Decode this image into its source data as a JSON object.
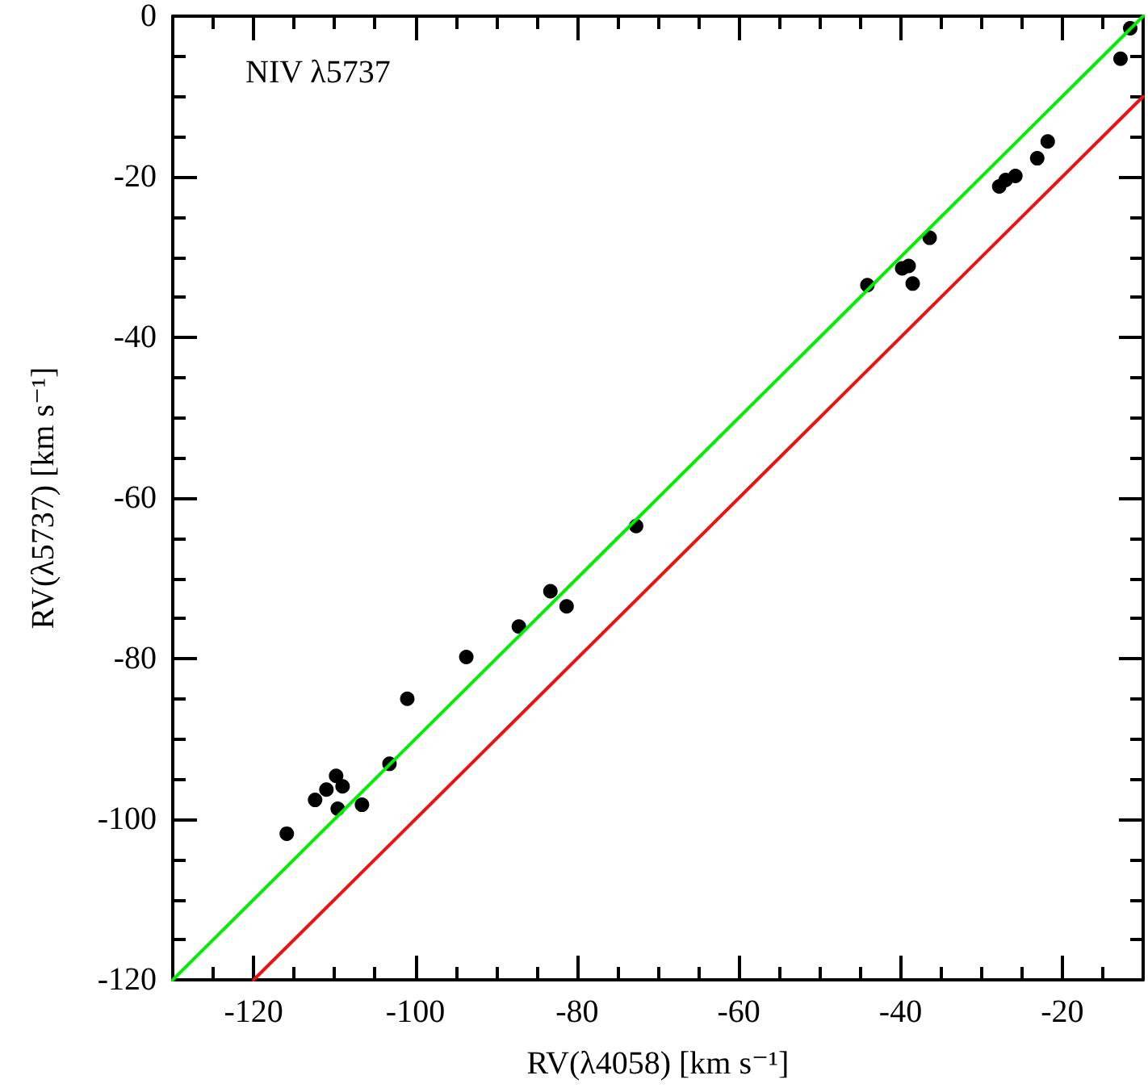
{
  "chart_data": {
    "type": "scatter",
    "xlabel": "RV(λ4058) [km s⁻¹]",
    "ylabel": "RV(λ5737) [km s⁻¹]",
    "annotations": [
      "NIV λ5737"
    ],
    "xlim": [
      -130,
      -10
    ],
    "ylim": [
      -120,
      0
    ],
    "xticks": [
      -120,
      -100,
      -80,
      -60,
      -40,
      -20,
      {
        "value": -125,
        "label": null
      },
      {
        "value": -115,
        "label": null
      },
      {
        "value": -110,
        "label": null
      },
      {
        "value": -105,
        "label": null
      },
      {
        "value": -95,
        "label": null
      },
      {
        "value": -90,
        "label": null
      },
      {
        "value": -85,
        "label": null
      },
      {
        "value": -75,
        "label": null
      },
      {
        "value": -70,
        "label": null
      },
      {
        "value": -65,
        "label": null
      },
      {
        "value": -55,
        "label": null
      },
      {
        "value": -50,
        "label": null
      },
      {
        "value": -45,
        "label": null
      },
      {
        "value": -35,
        "label": null
      },
      {
        "value": -30,
        "label": null
      },
      {
        "value": -25,
        "label": null
      },
      {
        "value": -15,
        "label": null
      }
    ],
    "yticks": [
      -120,
      -100,
      -80,
      -60,
      -40,
      -20,
      0,
      {
        "value": -115,
        "label": null
      },
      {
        "value": -110,
        "label": null
      },
      {
        "value": -105,
        "label": null
      },
      {
        "value": -95,
        "label": null
      },
      {
        "value": -90,
        "label": null
      },
      {
        "value": -85,
        "label": null
      },
      {
        "value": -75,
        "label": null
      },
      {
        "value": -70,
        "label": null
      },
      {
        "value": -65,
        "label": null
      },
      {
        "value": -55,
        "label": null
      },
      {
        "value": -50,
        "label": null
      },
      {
        "value": -45,
        "label": null
      },
      {
        "value": -35,
        "label": null
      },
      {
        "value": -30,
        "label": null
      },
      {
        "value": -25,
        "label": null
      },
      {
        "value": -15,
        "label": null
      },
      {
        "value": -10,
        "label": null
      },
      {
        "value": -5,
        "label": null
      }
    ],
    "grid": false,
    "marker": "circle",
    "series": [
      {
        "color": "#000000",
        "x": [
          -11.6,
          -12.8,
          -21.8,
          -23.1,
          -25.8,
          -27.0,
          -27.8,
          -36.4,
          -39.0,
          -39.8,
          -38.5,
          -44.1,
          -72.7,
          -83.3,
          -81.3,
          -87.2,
          -93.7,
          -101.0,
          -103.2,
          -109.8,
          -111.0,
          -109.0,
          -112.4,
          -109.6,
          -106.6,
          -115.9
        ],
        "values": [
          -1.5,
          -5.3,
          -15.6,
          -17.7,
          -19.9,
          -20.4,
          -21.2,
          -27.6,
          -31.1,
          -31.4,
          -33.3,
          -33.5,
          -63.5,
          -71.6,
          -73.5,
          -76.0,
          -79.8,
          -85.0,
          -93.1,
          -94.6,
          -96.3,
          -95.9,
          -97.6,
          -98.7,
          -98.2,
          -101.8
        ]
      },
      {
        "type": "line",
        "color": "#00ee00",
        "marker": "none",
        "x": [
          -130,
          -10
        ],
        "values": [
          -120,
          0
        ]
      },
      {
        "type": "line",
        "color": "#ee1111",
        "marker": "none",
        "x": [
          -120,
          -10
        ],
        "values": [
          -120,
          -10
        ]
      }
    ]
  }
}
